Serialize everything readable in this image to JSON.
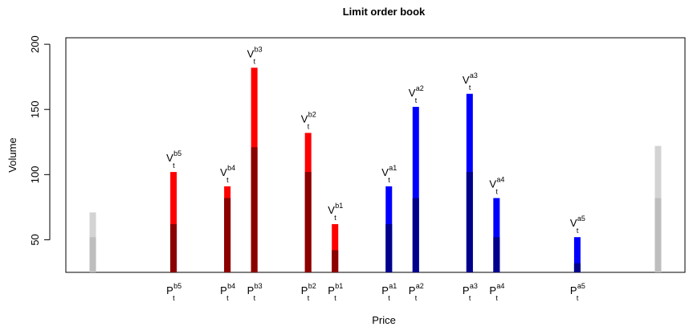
{
  "chart_data": {
    "type": "bar",
    "title": "Limit order book",
    "xlabel": "Price",
    "ylabel": "Volume",
    "ylim": [
      25,
      205
    ],
    "yticks": [
      50,
      100,
      150,
      200
    ],
    "grid": false,
    "legend": "none",
    "colors": {
      "bid_total": "#ff0000",
      "bid_hidden": "#8b0000",
      "ask_total": "#0000ff",
      "ask_hidden": "#00008b",
      "outside_total": "#d3d3d3",
      "outside_hidden": "#bebebe"
    },
    "series": [
      {
        "side": "outside",
        "x": 1.0,
        "total": 71,
        "hidden": 52
      },
      {
        "side": "bid",
        "x": 4.0,
        "total": 102,
        "hidden": 62,
        "label": "b5",
        "price_label": "b5"
      },
      {
        "side": "bid",
        "x": 6.0,
        "total": 91,
        "hidden": 82,
        "label": "b4",
        "price_label": "b4"
      },
      {
        "side": "bid",
        "x": 7.0,
        "total": 182,
        "hidden": 121,
        "label": "b3",
        "price_label": "b3"
      },
      {
        "side": "bid",
        "x": 9.0,
        "total": 132,
        "hidden": 102,
        "label": "b2",
        "price_label": "b2"
      },
      {
        "side": "bid",
        "x": 10.0,
        "total": 62,
        "hidden": 42,
        "label": "b1",
        "price_label": "b1"
      },
      {
        "side": "ask",
        "x": 12.0,
        "total": 91,
        "hidden": 62,
        "label": "a1",
        "price_label": "a1"
      },
      {
        "side": "ask",
        "x": 13.0,
        "total": 152,
        "hidden": 82,
        "label": "a2",
        "price_label": "a2"
      },
      {
        "side": "ask",
        "x": 15.0,
        "total": 162,
        "hidden": 102,
        "label": "a3",
        "price_label": "a3"
      },
      {
        "side": "ask",
        "x": 16.0,
        "total": 82,
        "hidden": 52,
        "label": "a4",
        "price_label": "a4"
      },
      {
        "side": "ask",
        "x": 19.0,
        "total": 52,
        "hidden": 32,
        "label": "a5",
        "price_label": "a5"
      },
      {
        "side": "outside",
        "x": 22.0,
        "total": 122,
        "hidden": 82
      }
    ],
    "label_base": {
      "volume": "V",
      "price": "P",
      "sub": "t"
    }
  }
}
